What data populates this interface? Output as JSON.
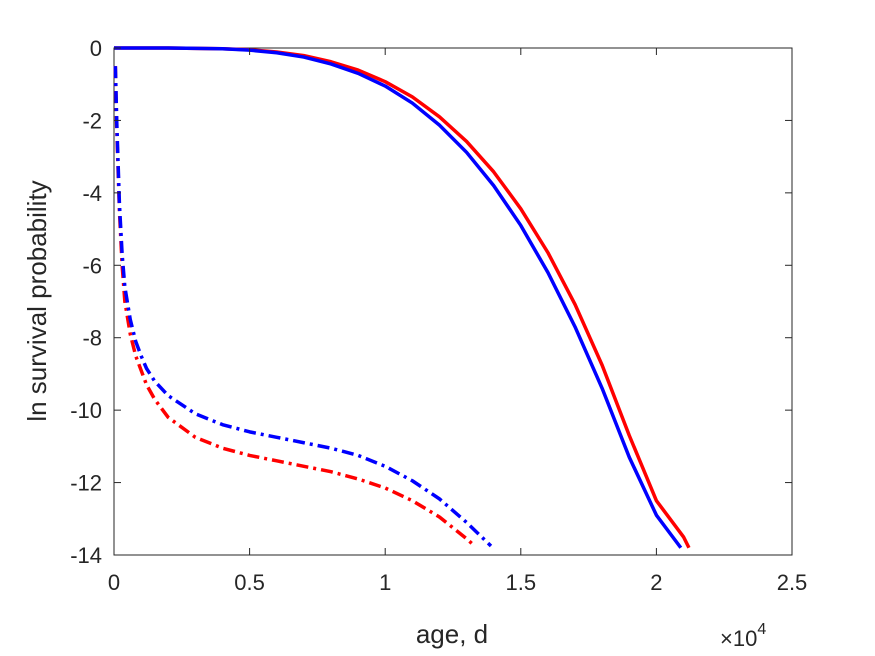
{
  "chart_data": {
    "type": "line",
    "title": "",
    "xlabel": "age, d",
    "ylabel": "ln survival probability",
    "x_exponent_label": "×10",
    "x_exponent_power": "4",
    "xlim": [
      0,
      2.5
    ],
    "ylim": [
      -14,
      0
    ],
    "x_unit_multiplier": 10000,
    "xticks": [
      0,
      0.5,
      1,
      1.5,
      2,
      2.5
    ],
    "xtick_labels": [
      "0",
      "0.5",
      "1",
      "1.5",
      "2",
      "2.5"
    ],
    "yticks": [
      0,
      -2,
      -4,
      -6,
      -8,
      -10,
      -12,
      -14
    ],
    "ytick_labels": [
      "0",
      "-2",
      "-4",
      "-6",
      "-8",
      "-10",
      "-12",
      "-14"
    ],
    "grid": false,
    "legend": "none",
    "series": [
      {
        "color": "#ff0000",
        "style": "solid",
        "x": [
          0,
          0.2,
          0.4,
          0.5,
          0.6,
          0.7,
          0.8,
          0.9,
          1.0,
          1.1,
          1.2,
          1.3,
          1.4,
          1.5,
          1.6,
          1.7,
          1.8,
          1.9,
          2.0,
          2.1,
          2.12
        ],
        "y": [
          0,
          0,
          -0.02,
          -0.05,
          -0.11,
          -0.21,
          -0.38,
          -0.61,
          -0.93,
          -1.35,
          -1.9,
          -2.58,
          -3.42,
          -4.44,
          -5.65,
          -7.08,
          -8.76,
          -10.7,
          -12.5,
          -13.5,
          -13.8
        ]
      },
      {
        "color": "#0000ff",
        "style": "solid",
        "x": [
          0,
          0.2,
          0.4,
          0.5,
          0.6,
          0.7,
          0.8,
          0.9,
          1.0,
          1.1,
          1.2,
          1.3,
          1.4,
          1.5,
          1.6,
          1.7,
          1.8,
          1.9,
          2.0,
          2.09
        ],
        "y": [
          0,
          0,
          -0.02,
          -0.06,
          -0.13,
          -0.25,
          -0.44,
          -0.7,
          -1.05,
          -1.52,
          -2.13,
          -2.88,
          -3.8,
          -4.9,
          -6.2,
          -7.7,
          -9.4,
          -11.3,
          -12.9,
          -13.8
        ]
      },
      {
        "color": "#ff0000",
        "style": "dashdot",
        "x": [
          0.005,
          0.01,
          0.02,
          0.03,
          0.04,
          0.06,
          0.08,
          0.1,
          0.12,
          0.15,
          0.2,
          0.3,
          0.4,
          0.5,
          0.6,
          0.7,
          0.8,
          0.9,
          1.0,
          1.1,
          1.2,
          1.3,
          1.33
        ],
        "y": [
          -0.5,
          -2.2,
          -4.5,
          -6.0,
          -7.0,
          -7.9,
          -8.5,
          -8.9,
          -9.3,
          -9.7,
          -10.2,
          -10.75,
          -11.05,
          -11.25,
          -11.4,
          -11.55,
          -11.7,
          -11.9,
          -12.15,
          -12.5,
          -12.95,
          -13.55,
          -13.75
        ]
      },
      {
        "color": "#0000ff",
        "style": "dashdot",
        "x": [
          0.005,
          0.01,
          0.02,
          0.03,
          0.04,
          0.06,
          0.08,
          0.1,
          0.12,
          0.15,
          0.2,
          0.3,
          0.4,
          0.5,
          0.6,
          0.7,
          0.8,
          0.9,
          1.0,
          1.1,
          1.2,
          1.3,
          1.39
        ],
        "y": [
          -0.5,
          -2.0,
          -4.3,
          -5.7,
          -6.6,
          -7.5,
          -8.1,
          -8.5,
          -8.85,
          -9.2,
          -9.6,
          -10.1,
          -10.4,
          -10.6,
          -10.75,
          -10.9,
          -11.05,
          -11.25,
          -11.55,
          -11.95,
          -12.45,
          -13.1,
          -13.75
        ]
      }
    ]
  }
}
